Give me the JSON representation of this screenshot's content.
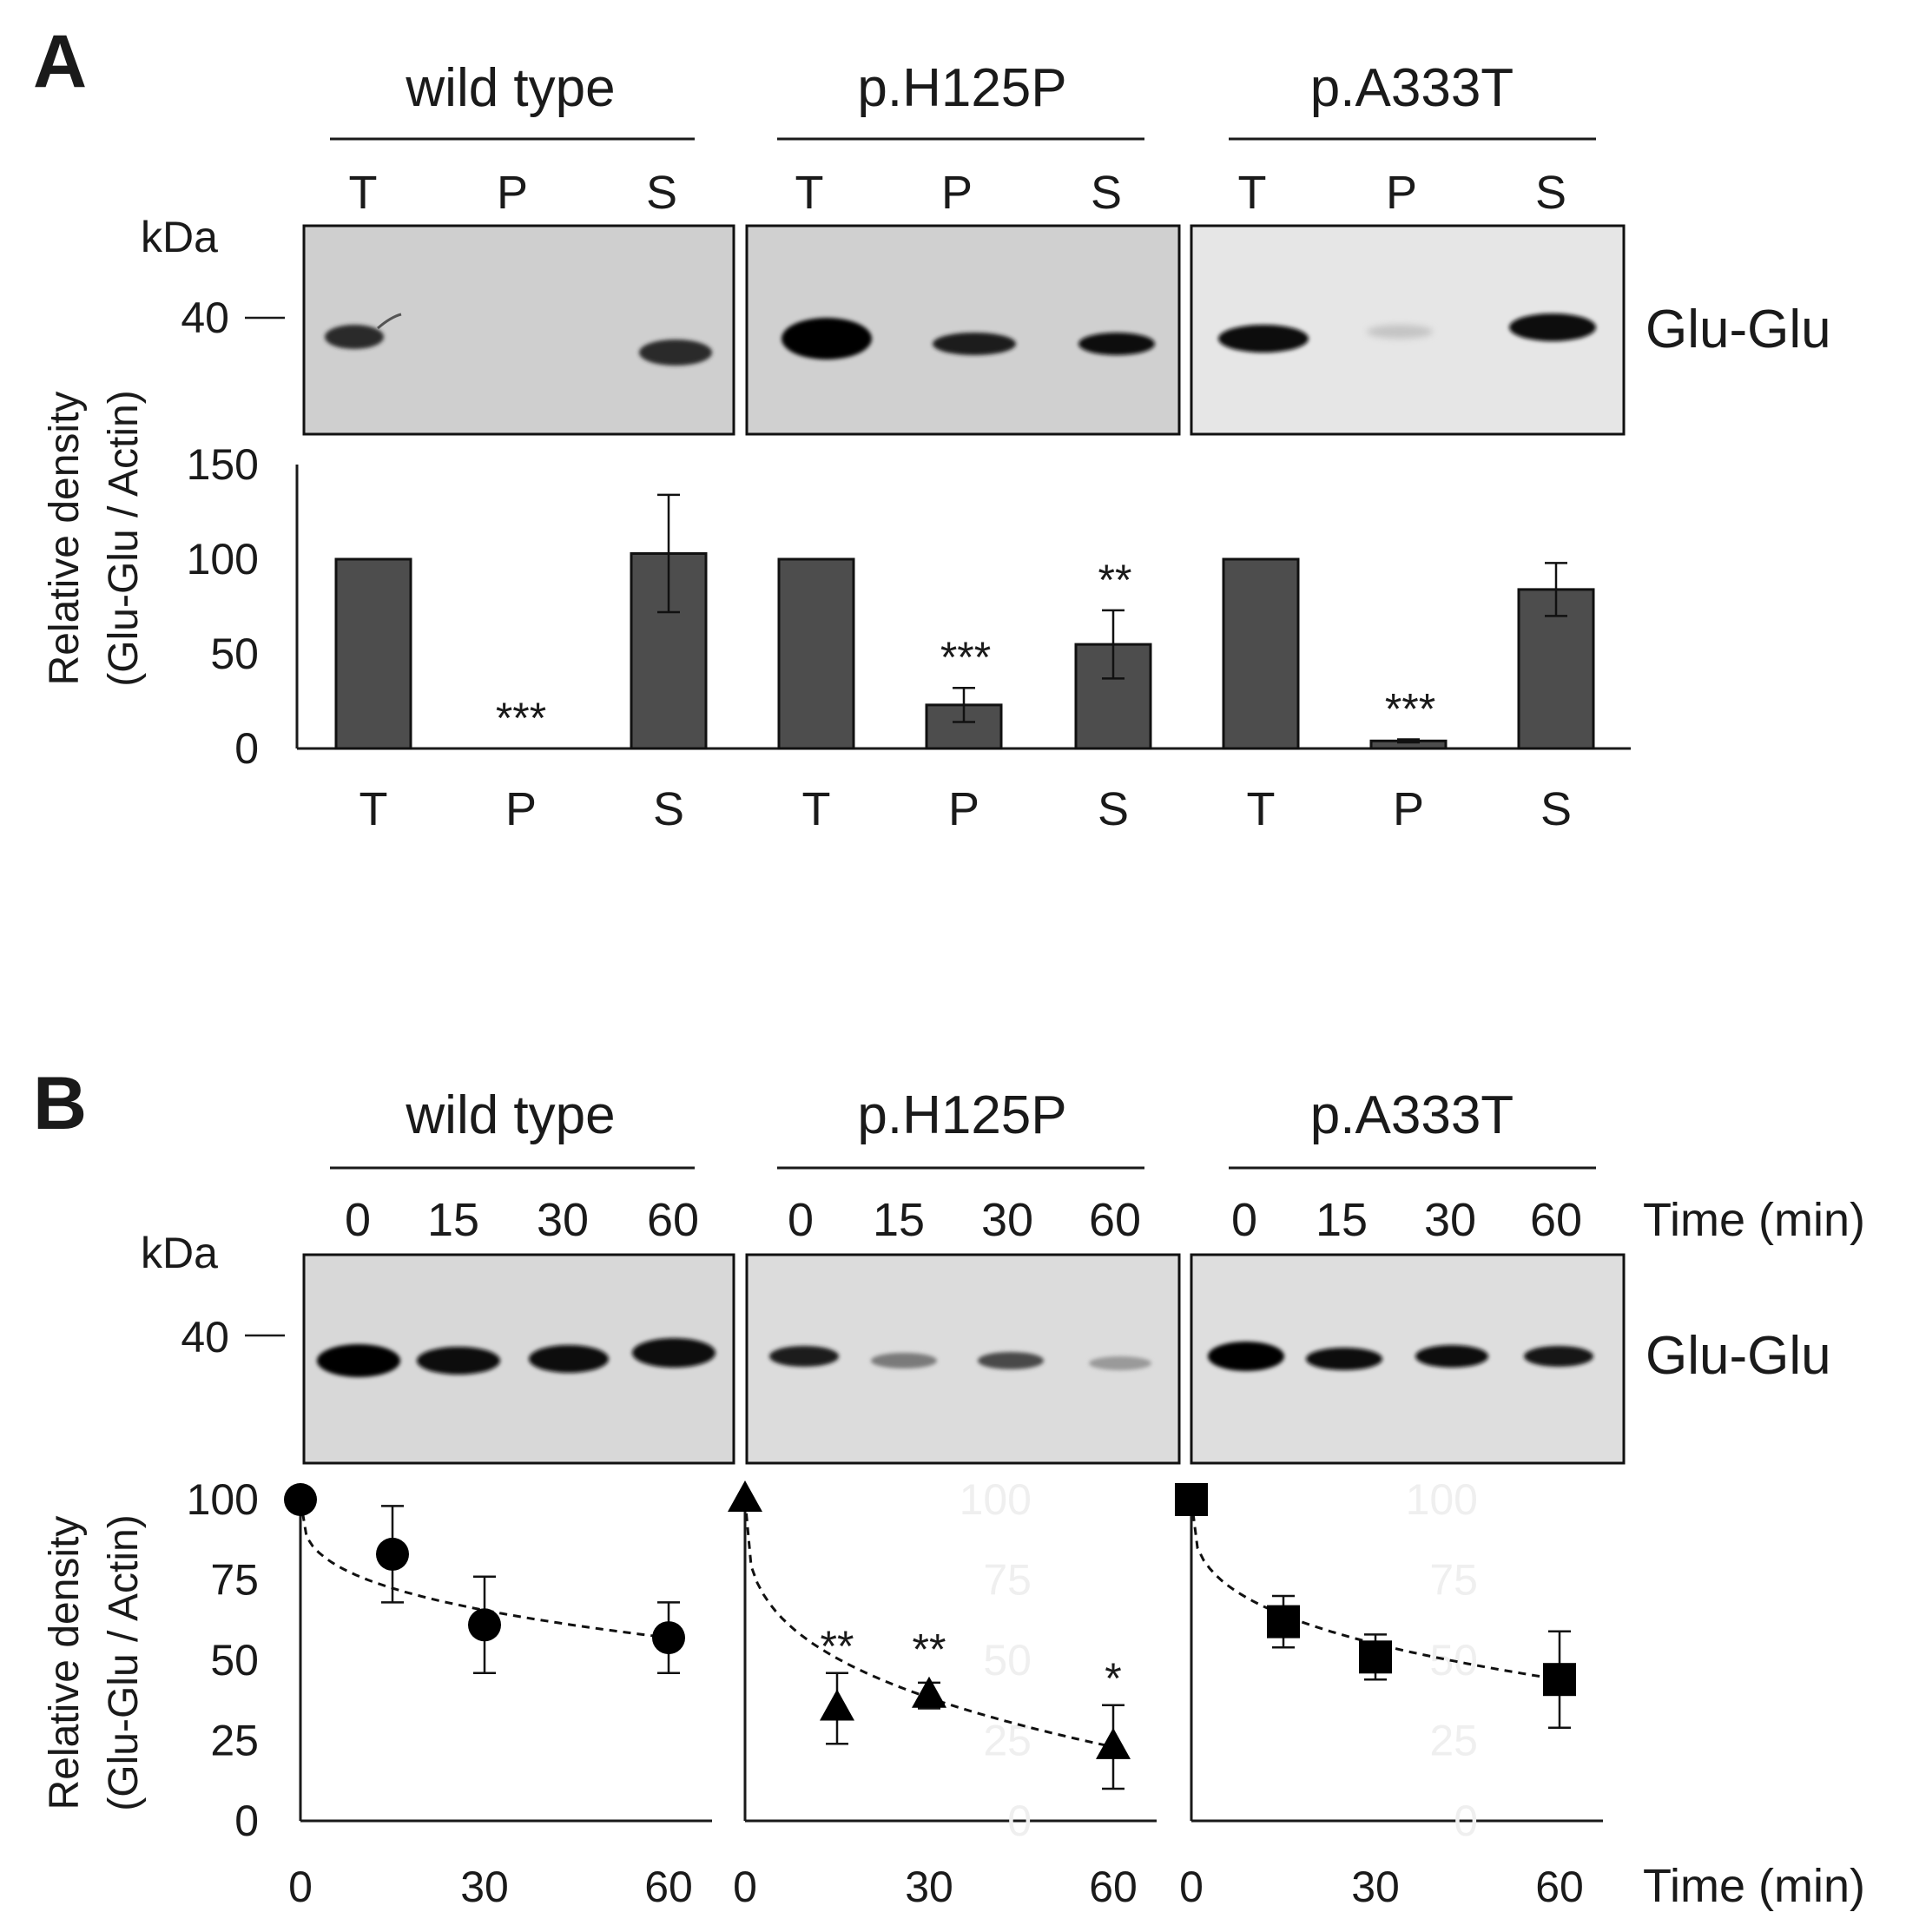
{
  "panel_a": {
    "letter": "A",
    "groups": [
      "wild type",
      "p.H125P",
      "p.A333T"
    ],
    "lane_labels": [
      "T",
      "P",
      "S"
    ],
    "blot": {
      "kda_label": "kDa",
      "marker": "40",
      "band_label": "Glu-Glu"
    },
    "chart_data": {
      "type": "bar",
      "categories": [
        "T",
        "P",
        "S",
        "T",
        "P",
        "S",
        "T",
        "P",
        "S"
      ],
      "groups": [
        "wild type",
        "p.H125P",
        "p.A333T"
      ],
      "values": [
        100,
        0,
        103,
        100,
        23,
        55,
        100,
        4,
        84
      ],
      "errors": [
        0,
        0,
        31,
        0,
        9,
        18,
        0,
        0.8,
        14
      ],
      "significance": [
        "",
        "***",
        "",
        "",
        "***",
        "**",
        "",
        "***",
        ""
      ],
      "ylabel_line1": "Relative density",
      "ylabel_line2": "(Glu-Glu  / Actin)",
      "ylim": [
        0,
        150
      ],
      "yticks": [
        0,
        50,
        100,
        150
      ],
      "bar_color": "#4d4d4d"
    }
  },
  "panel_b": {
    "letter": "B",
    "groups": [
      "wild type",
      "p.H125P",
      "p.A333T"
    ],
    "time_points": [
      "0",
      "15",
      "30",
      "60"
    ],
    "time_label": "Time  (min)",
    "blot": {
      "kda_label": "kDa",
      "marker": "40",
      "band_label": "Glu-Glu"
    },
    "chart_data": {
      "type": "scatter",
      "ylabel_line1": "Relative density",
      "ylabel_line2": "(Glu-Glu  / Actin)",
      "xlabel": "Time  (min)",
      "xlim": [
        0,
        60
      ],
      "ylim": [
        0,
        100
      ],
      "xticks": [
        0,
        30,
        60
      ],
      "yticks": [
        0,
        25,
        50,
        75,
        100
      ],
      "trend_line": "dashed",
      "series": [
        {
          "name": "wild type",
          "marker": "circle",
          "x": [
            0,
            15,
            30,
            60
          ],
          "y": [
            100,
            83,
            61,
            57
          ],
          "err": [
            0,
            15,
            15,
            11
          ],
          "sig": [
            "",
            "",
            "",
            ""
          ]
        },
        {
          "name": "p.H125P",
          "marker": "triangle",
          "x": [
            0,
            15,
            30,
            60
          ],
          "y": [
            100,
            35,
            39,
            23
          ],
          "err": [
            0,
            11,
            4,
            13
          ],
          "sig": [
            "",
            "**",
            "**",
            "*"
          ]
        },
        {
          "name": "p.A333T",
          "marker": "square",
          "x": [
            0,
            15,
            30,
            60
          ],
          "y": [
            100,
            62,
            51,
            44
          ],
          "err": [
            0,
            8,
            7,
            15
          ],
          "sig": [
            "",
            "",
            "",
            ""
          ]
        }
      ],
      "faint_ticks_note": "",
      "faint_tick_values": [
        "100",
        "75",
        "50",
        "25",
        "0"
      ]
    }
  }
}
